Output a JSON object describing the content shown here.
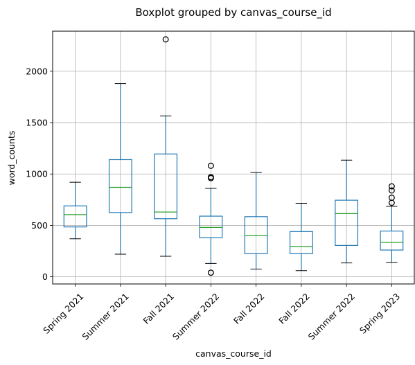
{
  "chart_data": {
    "type": "boxplot",
    "title": "Boxplot grouped by canvas_course_id",
    "xlabel": "canvas_course_id",
    "ylabel": "word_counts",
    "ylim": [
      -70,
      2390
    ],
    "yticks": [
      0,
      500,
      1000,
      1500,
      2000
    ],
    "grid": true,
    "categories": [
      "Spring 2021",
      "Summer 2021",
      "Fall 2021",
      "Summer 2022",
      "Fall 2022",
      "Fall 2022",
      "Summer 2022",
      "Spring 2023"
    ],
    "boxes": [
      {
        "whisker_low": 370,
        "q1": 485,
        "median": 605,
        "q3": 690,
        "whisker_high": 920,
        "outliers": []
      },
      {
        "whisker_low": 220,
        "q1": 625,
        "median": 870,
        "q3": 1140,
        "whisker_high": 1880,
        "outliers": []
      },
      {
        "whisker_low": 200,
        "q1": 565,
        "median": 630,
        "q3": 1195,
        "whisker_high": 1565,
        "outliers": [
          2310
        ]
      },
      {
        "whisker_low": 130,
        "q1": 380,
        "median": 480,
        "q3": 590,
        "whisker_high": 860,
        "outliers": [
          40,
          960,
          970,
          1080
        ]
      },
      {
        "whisker_low": 75,
        "q1": 225,
        "median": 400,
        "q3": 585,
        "whisker_high": 1015,
        "outliers": []
      },
      {
        "whisker_low": 60,
        "q1": 225,
        "median": 295,
        "q3": 440,
        "whisker_high": 715,
        "outliers": []
      },
      {
        "whisker_low": 135,
        "q1": 305,
        "median": 615,
        "q3": 745,
        "whisker_high": 1135,
        "outliers": []
      },
      {
        "whisker_low": 140,
        "q1": 260,
        "median": 335,
        "q3": 445,
        "whisker_high": 685,
        "outliers": [
          720,
          770,
          840,
          880
        ]
      }
    ],
    "colors": {
      "box": "#1f77b4",
      "median": "#2ca02c",
      "grid": "#b0b0b0",
      "axis": "#000000"
    }
  }
}
